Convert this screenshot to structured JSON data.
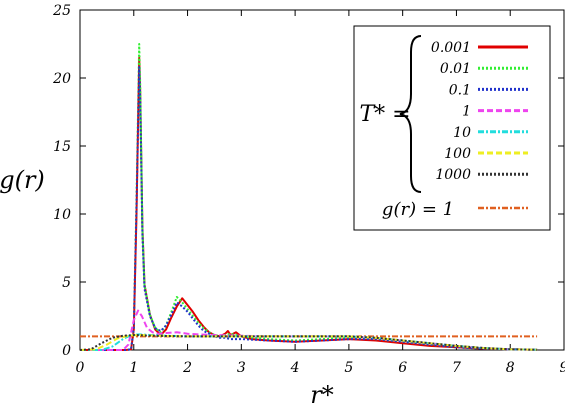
{
  "chart_data": {
    "type": "line",
    "xlabel": "r*",
    "ylabel": "g(r)",
    "xlim": [
      0,
      9
    ],
    "ylim": [
      0,
      25
    ],
    "x_ticks": [
      0,
      1,
      2,
      3,
      4,
      5,
      6,
      7,
      8,
      9
    ],
    "y_ticks": [
      0,
      5,
      10,
      15,
      20,
      25
    ],
    "grid": false,
    "legend": {
      "placement": "top-right",
      "group_label": "T* =",
      "reference_label": "g(r) = 1"
    },
    "series": [
      {
        "name": "0.001",
        "color": "#e00000",
        "dash": "solid",
        "points": [
          [
            0.0,
            0
          ],
          [
            0.85,
            0
          ],
          [
            0.95,
            0.05
          ],
          [
            1.0,
            1.5
          ],
          [
            1.05,
            10.0
          ],
          [
            1.1,
            21.5
          ],
          [
            1.12,
            19.0
          ],
          [
            1.16,
            9.0
          ],
          [
            1.2,
            4.8
          ],
          [
            1.3,
            2.6
          ],
          [
            1.4,
            1.5
          ],
          [
            1.5,
            1.1
          ],
          [
            1.6,
            1.5
          ],
          [
            1.7,
            2.4
          ],
          [
            1.8,
            3.2
          ],
          [
            1.9,
            3.8
          ],
          [
            2.0,
            3.3
          ],
          [
            2.1,
            2.8
          ],
          [
            2.2,
            2.2
          ],
          [
            2.3,
            1.7
          ],
          [
            2.4,
            1.3
          ],
          [
            2.5,
            1.1
          ],
          [
            2.6,
            1.0
          ],
          [
            2.7,
            1.2
          ],
          [
            2.75,
            1.4
          ],
          [
            2.8,
            1.1
          ],
          [
            2.9,
            1.3
          ],
          [
            3.0,
            1.0
          ],
          [
            3.2,
            0.8
          ],
          [
            3.5,
            0.7
          ],
          [
            4.0,
            0.6
          ],
          [
            4.5,
            0.7
          ],
          [
            5.0,
            0.8
          ],
          [
            5.5,
            0.7
          ],
          [
            6.0,
            0.5
          ],
          [
            6.5,
            0.3
          ],
          [
            7.0,
            0.2
          ],
          [
            7.5,
            0.1
          ],
          [
            8.0,
            0.05
          ],
          [
            8.5,
            0.02
          ]
        ]
      },
      {
        "name": "0.01",
        "color": "#33ee33",
        "dash": "dotted",
        "points": [
          [
            0.0,
            0
          ],
          [
            0.85,
            0
          ],
          [
            0.95,
            0.05
          ],
          [
            1.0,
            1.7
          ],
          [
            1.05,
            11.0
          ],
          [
            1.1,
            22.5
          ],
          [
            1.12,
            19.5
          ],
          [
            1.16,
            9.0
          ],
          [
            1.2,
            4.8
          ],
          [
            1.3,
            2.6
          ],
          [
            1.4,
            1.6
          ],
          [
            1.5,
            1.3
          ],
          [
            1.6,
            1.8
          ],
          [
            1.7,
            2.8
          ],
          [
            1.8,
            3.9
          ],
          [
            1.9,
            3.5
          ],
          [
            2.0,
            3.0
          ],
          [
            2.1,
            2.5
          ],
          [
            2.2,
            2.0
          ],
          [
            2.3,
            1.6
          ],
          [
            2.4,
            1.3
          ],
          [
            2.5,
            1.1
          ],
          [
            2.6,
            1.0
          ],
          [
            2.7,
            1.1
          ],
          [
            2.8,
            1.2
          ],
          [
            3.0,
            1.0
          ],
          [
            3.5,
            0.8
          ],
          [
            4.0,
            0.7
          ],
          [
            4.5,
            0.8
          ],
          [
            5.0,
            0.9
          ],
          [
            5.5,
            0.8
          ],
          [
            6.0,
            0.6
          ],
          [
            6.5,
            0.4
          ],
          [
            7.0,
            0.2
          ],
          [
            7.5,
            0.1
          ],
          [
            8.0,
            0.05
          ],
          [
            8.5,
            0.02
          ]
        ]
      },
      {
        "name": "0.1",
        "color": "#2233cc",
        "dash": "dotted",
        "points": [
          [
            0.0,
            0
          ],
          [
            0.85,
            0
          ],
          [
            0.95,
            0.05
          ],
          [
            1.0,
            1.6
          ],
          [
            1.05,
            10.5
          ],
          [
            1.1,
            20.8
          ],
          [
            1.12,
            18.5
          ],
          [
            1.16,
            8.5
          ],
          [
            1.2,
            4.5
          ],
          [
            1.3,
            2.5
          ],
          [
            1.4,
            1.6
          ],
          [
            1.5,
            1.4
          ],
          [
            1.6,
            1.8
          ],
          [
            1.7,
            2.6
          ],
          [
            1.8,
            3.5
          ],
          [
            1.9,
            3.2
          ],
          [
            2.0,
            2.8
          ],
          [
            2.1,
            2.3
          ],
          [
            2.2,
            1.8
          ],
          [
            2.3,
            1.4
          ],
          [
            2.4,
            1.2
          ],
          [
            2.5,
            1.0
          ],
          [
            2.6,
            0.9
          ],
          [
            2.7,
            0.9
          ],
          [
            2.8,
            0.8
          ],
          [
            3.0,
            0.8
          ],
          [
            3.5,
            0.7
          ],
          [
            4.0,
            0.6
          ],
          [
            4.5,
            0.7
          ],
          [
            5.0,
            0.8
          ],
          [
            5.5,
            0.8
          ],
          [
            6.0,
            0.6
          ],
          [
            6.5,
            0.4
          ],
          [
            7.0,
            0.2
          ],
          [
            7.5,
            0.1
          ],
          [
            8.0,
            0.05
          ],
          [
            8.5,
            0.02
          ]
        ]
      },
      {
        "name": "1",
        "color": "#ee44ee",
        "dash": "dashed",
        "points": [
          [
            0.0,
            0
          ],
          [
            0.8,
            0
          ],
          [
            0.9,
            0.4
          ],
          [
            1.0,
            2.2
          ],
          [
            1.08,
            2.9
          ],
          [
            1.15,
            2.5
          ],
          [
            1.25,
            1.6
          ],
          [
            1.35,
            1.3
          ],
          [
            1.45,
            1.2
          ],
          [
            1.6,
            1.25
          ],
          [
            1.8,
            1.3
          ],
          [
            2.0,
            1.2
          ],
          [
            2.2,
            1.15
          ],
          [
            2.5,
            1.1
          ],
          [
            3.0,
            1.05
          ],
          [
            3.5,
            1.0
          ],
          [
            4.0,
            1.0
          ],
          [
            4.5,
            1.0
          ],
          [
            5.0,
            1.0
          ],
          [
            5.5,
            0.9
          ],
          [
            6.0,
            0.7
          ],
          [
            6.5,
            0.5
          ],
          [
            7.0,
            0.3
          ],
          [
            7.5,
            0.15
          ],
          [
            8.0,
            0.05
          ],
          [
            8.5,
            0.02
          ]
        ]
      },
      {
        "name": "10",
        "color": "#22dddd",
        "dash": "dashdot",
        "points": [
          [
            0.0,
            0
          ],
          [
            0.4,
            0
          ],
          [
            0.6,
            0.25
          ],
          [
            0.8,
            0.8
          ],
          [
            0.95,
            1.1
          ],
          [
            1.1,
            1.15
          ],
          [
            1.3,
            1.1
          ],
          [
            1.6,
            1.05
          ],
          [
            2.0,
            1.0
          ],
          [
            3.0,
            1.0
          ],
          [
            4.0,
            1.0
          ],
          [
            5.0,
            1.0
          ],
          [
            5.5,
            0.9
          ],
          [
            6.0,
            0.7
          ],
          [
            6.5,
            0.5
          ],
          [
            7.0,
            0.3
          ],
          [
            7.5,
            0.15
          ],
          [
            8.0,
            0.05
          ],
          [
            8.5,
            0.02
          ]
        ]
      },
      {
        "name": "100",
        "color": "#eeee22",
        "dash": "dashed",
        "points": [
          [
            0.0,
            0
          ],
          [
            0.3,
            0.05
          ],
          [
            0.5,
            0.4
          ],
          [
            0.7,
            0.85
          ],
          [
            0.9,
            1.05
          ],
          [
            1.1,
            1.1
          ],
          [
            1.4,
            1.05
          ],
          [
            2.0,
            1.0
          ],
          [
            3.0,
            1.0
          ],
          [
            4.0,
            1.0
          ],
          [
            5.0,
            1.0
          ],
          [
            5.5,
            0.9
          ],
          [
            6.0,
            0.7
          ],
          [
            6.5,
            0.5
          ],
          [
            7.0,
            0.3
          ],
          [
            7.5,
            0.15
          ],
          [
            8.0,
            0.05
          ],
          [
            8.5,
            0.02
          ]
        ]
      },
      {
        "name": "1000",
        "color": "#333333",
        "dash": "dotted",
        "points": [
          [
            0.0,
            0
          ],
          [
            0.2,
            0.05
          ],
          [
            0.4,
            0.5
          ],
          [
            0.6,
            0.9
          ],
          [
            0.8,
            1.05
          ],
          [
            1.0,
            1.1
          ],
          [
            1.3,
            1.05
          ],
          [
            2.0,
            1.0
          ],
          [
            3.0,
            1.0
          ],
          [
            4.0,
            1.0
          ],
          [
            5.0,
            1.0
          ],
          [
            5.5,
            0.9
          ],
          [
            6.0,
            0.7
          ],
          [
            6.5,
            0.5
          ],
          [
            7.0,
            0.3
          ],
          [
            7.5,
            0.15
          ],
          [
            8.0,
            0.05
          ],
          [
            8.5,
            0.02
          ]
        ]
      },
      {
        "name": "g(r) = 1",
        "color": "#e06020",
        "dash": "dashdot",
        "reference": true,
        "points": [
          [
            0.0,
            1
          ],
          [
            8.5,
            1
          ]
        ]
      }
    ]
  }
}
